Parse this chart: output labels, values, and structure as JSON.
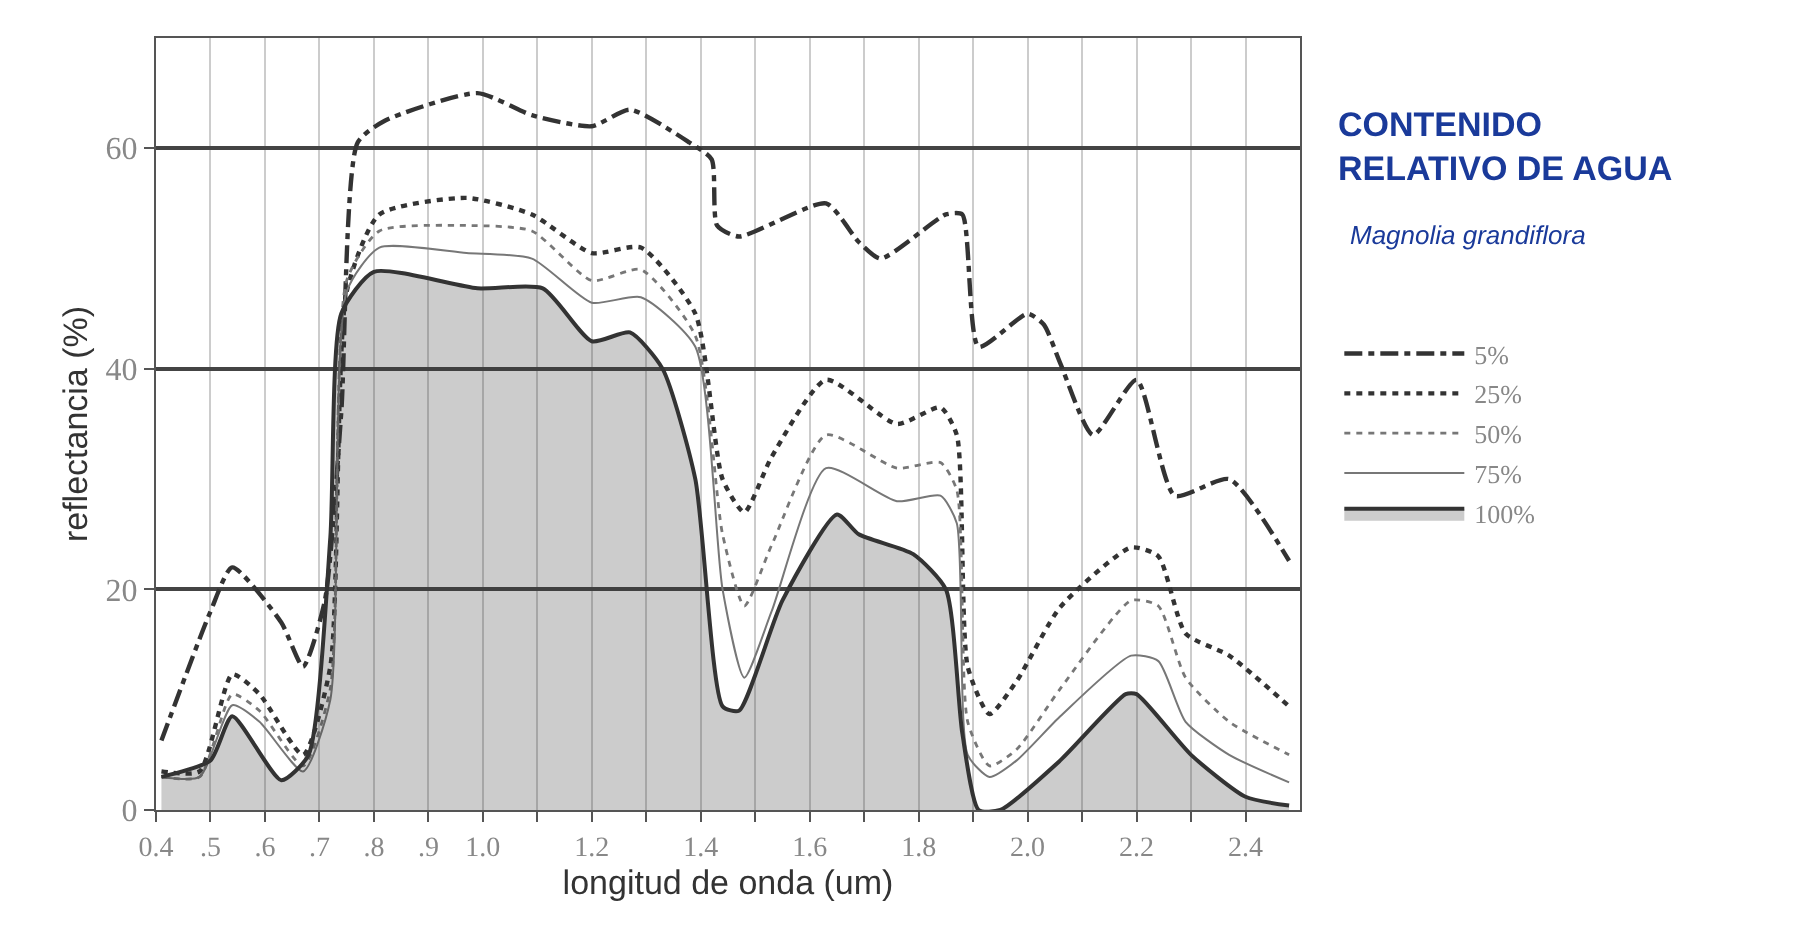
{
  "chart_data": {
    "type": "line",
    "title": "CONTENIDO RELATIVO DE AGUA",
    "subtitle": "Magnolia grandiflora",
    "xlabel": "longitud de onda (um)",
    "ylabel": "reflectancia (%)",
    "xlim": [
      0.4,
      2.5
    ],
    "ylim": [
      0,
      70
    ],
    "xticks": [
      {
        "value": 0.4,
        "label": "0.4"
      },
      {
        "value": 0.5,
        "label": ".5"
      },
      {
        "value": 0.6,
        "label": ".6"
      },
      {
        "value": 0.7,
        "label": ".7"
      },
      {
        "value": 0.8,
        "label": ".8"
      },
      {
        "value": 0.9,
        "label": ".9"
      },
      {
        "value": 1.0,
        "label": "1.0"
      },
      {
        "value": 1.1,
        "label": null
      },
      1.2,
      {
        "value": 1.3,
        "label": null
      },
      1.4,
      {
        "value": 1.5,
        "label": null
      },
      1.6,
      {
        "value": 1.7,
        "label": null
      },
      1.8,
      {
        "value": 1.9,
        "label": null
      },
      {
        "value": 2.0,
        "label": "2.0"
      },
      {
        "value": 2.1,
        "label": null
      },
      2.2,
      {
        "value": 2.3,
        "label": null
      },
      2.4
    ],
    "yticks": [
      0,
      20,
      40,
      60
    ],
    "grid": true,
    "legend": "right",
    "marker": "none",
    "series": [
      {
        "name": "5%",
        "color": "#333333",
        "line_style": "dashdot",
        "x": [
          0.41,
          0.5,
          0.54,
          0.63,
          0.67,
          0.71,
          0.74,
          0.77,
          0.82,
          0.99,
          1.09,
          1.2,
          1.27,
          1.38,
          1.42,
          1.43,
          1.47,
          1.63,
          1.69,
          1.73,
          1.85,
          1.88,
          1.91,
          2.0,
          2.03,
          2.06,
          2.12,
          2.2,
          2.27,
          2.37,
          2.48
        ],
        "values": [
          6.3,
          18,
          22,
          17,
          13,
          19,
          36,
          60.5,
          62.5,
          65,
          63,
          62,
          63.5,
          60.5,
          59,
          53,
          52,
          55,
          51.5,
          50,
          54,
          54,
          42,
          45,
          44,
          40.5,
          34,
          39,
          28.5,
          30,
          22.6
        ]
      },
      {
        "name": "25%",
        "color": "#333333",
        "line_style": "dotted",
        "x": [
          0.41,
          0.48,
          0.54,
          0.59,
          0.67,
          0.72,
          0.75,
          0.81,
          0.97,
          1.09,
          1.2,
          1.29,
          1.39,
          1.44,
          1.48,
          1.53,
          1.63,
          1.76,
          1.84,
          1.87,
          1.89,
          1.93,
          1.98,
          2.06,
          2.19,
          2.24,
          2.29,
          2.37,
          2.48
        ],
        "values": [
          3.5,
          3.5,
          12.3,
          10.5,
          5,
          13,
          47,
          54,
          55.5,
          54,
          50.5,
          51,
          45,
          30,
          27,
          32,
          39,
          35,
          36.5,
          34,
          13,
          8.7,
          11.7,
          18.4,
          23.8,
          23,
          16,
          14,
          9.4
        ]
      },
      {
        "name": "50%",
        "color": "#777777",
        "line_style": "dotted",
        "x": [
          0.41,
          0.48,
          0.54,
          0.59,
          0.67,
          0.72,
          0.75,
          0.81,
          0.97,
          1.09,
          1.2,
          1.29,
          1.39,
          1.44,
          1.48,
          1.53,
          1.63,
          1.76,
          1.84,
          1.87,
          1.89,
          1.93,
          1.98,
          2.06,
          2.19,
          2.24,
          2.29,
          2.37,
          2.48
        ],
        "values": [
          3,
          3,
          10.5,
          9,
          4,
          11,
          48,
          52.5,
          53,
          52.5,
          48,
          49,
          43,
          25,
          18.5,
          24,
          34,
          31,
          31.5,
          29,
          8,
          4,
          5.5,
          11,
          19,
          18.5,
          12,
          8,
          5
        ]
      },
      {
        "name": "75%",
        "color": "#777777",
        "line_style": "solid",
        "x": [
          0.41,
          0.48,
          0.54,
          0.59,
          0.67,
          0.72,
          0.75,
          0.81,
          0.97,
          1.09,
          1.2,
          1.29,
          1.39,
          1.44,
          1.48,
          1.53,
          1.63,
          1.76,
          1.84,
          1.87,
          1.89,
          1.93,
          1.98,
          2.06,
          2.19,
          2.24,
          2.29,
          2.37,
          2.48
        ],
        "values": [
          3,
          3,
          9.5,
          8,
          3.5,
          10,
          47,
          51,
          50.5,
          50,
          46,
          46.5,
          42,
          20,
          12,
          18,
          31,
          28,
          28.5,
          26,
          5,
          3,
          4.5,
          8.5,
          14,
          13.5,
          8,
          5,
          2.5
        ]
      },
      {
        "name": "100%",
        "color": "#333333",
        "type": "area",
        "line_style": "solid",
        "x": [
          0.41,
          0.5,
          0.54,
          0.63,
          0.68,
          0.72,
          0.74,
          0.8,
          0.99,
          1.11,
          1.2,
          1.27,
          1.33,
          1.39,
          1.44,
          1.47,
          1.55,
          1.65,
          1.69,
          1.79,
          1.85,
          1.88,
          1.91,
          1.95,
          2.06,
          2.18,
          2.2,
          2.3,
          2.4,
          2.48
        ],
        "values": [
          3,
          4.5,
          8.5,
          2.7,
          5,
          24.7,
          45,
          48.8,
          47.3,
          47.3,
          42.5,
          43.3,
          40,
          30,
          9.4,
          9,
          19,
          26.8,
          25,
          23.2,
          20,
          7,
          0,
          0,
          4.5,
          10.5,
          10.5,
          5,
          1.2,
          0.4
        ]
      }
    ]
  }
}
